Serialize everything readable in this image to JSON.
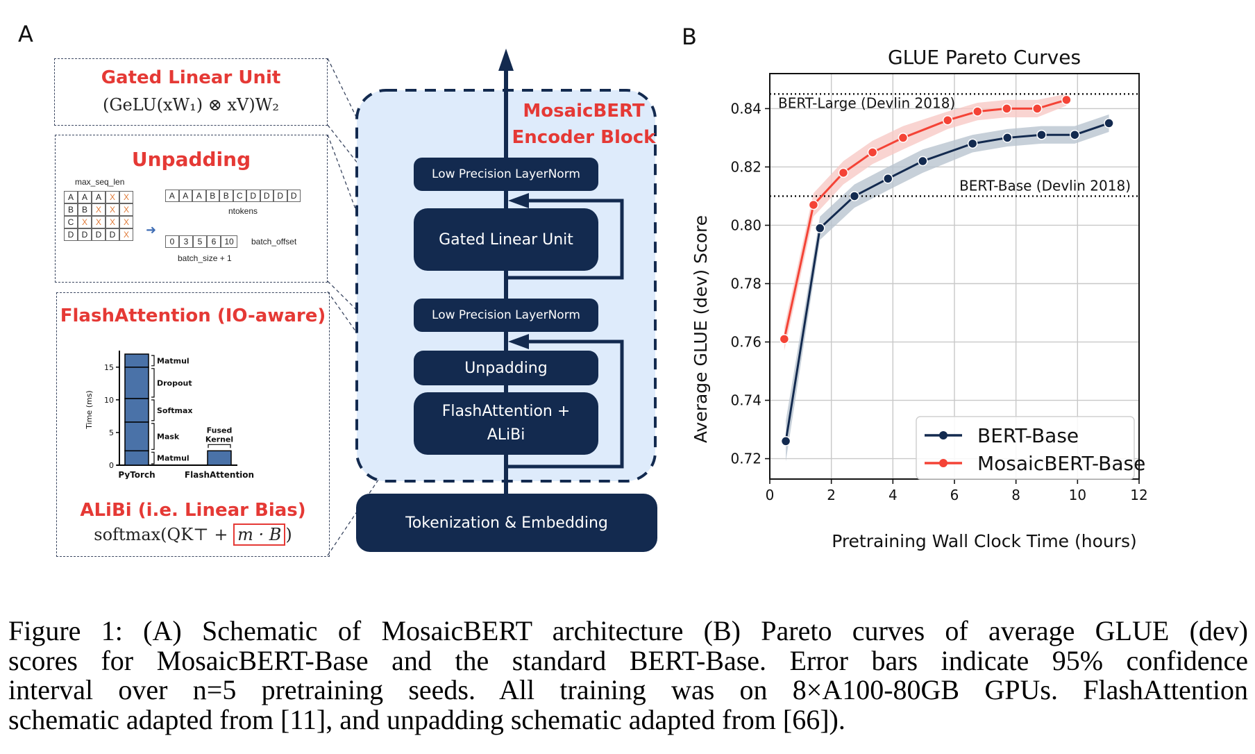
{
  "panel_a": {
    "letter": "A",
    "glu_box": {
      "title": "Gated Linear Unit",
      "formula": "(GeLU(xW₁) ⊗ xV)W₂"
    },
    "unpadding_box": {
      "title": "Unpadding",
      "grid_label": "max_seq_len",
      "grid": [
        [
          "A",
          "A",
          "A",
          "X",
          "X"
        ],
        [
          "B",
          "B",
          "X",
          "X",
          "X"
        ],
        [
          "C",
          "X",
          "X",
          "X",
          "X"
        ],
        [
          "D",
          "D",
          "D",
          "D",
          "X"
        ]
      ],
      "tokens": [
        "A",
        "A",
        "A",
        "B",
        "B",
        "C",
        "D",
        "D",
        "D",
        "D"
      ],
      "tokens_label": "ntokens",
      "offsets": [
        "0",
        "3",
        "5",
        "6",
        "10"
      ],
      "offsets_label": "batch_offset",
      "offsets_sublabel": "batch_size + 1"
    },
    "flash_box": {
      "title": "FlashAttention (IO-aware)",
      "chart": {
        "ylabel": "Time (ms)",
        "yticks": [
          "0",
          "5",
          "10",
          "15"
        ],
        "ymax": 17,
        "pytorch_segments": [
          {
            "label": "Matmul",
            "start": 0,
            "end": 2.2
          },
          {
            "label": "Mask",
            "start": 2.2,
            "end": 6.6
          },
          {
            "label": "Softmax",
            "start": 6.6,
            "end": 10.2
          },
          {
            "label": "Dropout",
            "start": 10.2,
            "end": 15.0
          },
          {
            "label": "Matmul",
            "start": 15.0,
            "end": 17.0
          }
        ],
        "flash_value": 2.2,
        "flash_label_line1": "Fused",
        "flash_label_line2": "Kernel",
        "xlabels": [
          "PyTorch",
          "FlashAttention"
        ]
      },
      "alibi_title": "ALiBi (i.e. Linear Bias)",
      "alibi_formula_prefix": "softmax(QK⊤ + ",
      "alibi_formula_boxed": "m · B",
      "alibi_formula_suffix": ")"
    },
    "encoder": {
      "title_line1": "MosaicBERT",
      "title_line2": "Encoder Block",
      "blocks": {
        "ln_top": "Low Precision LayerNorm",
        "glu": "Gated Linear Unit",
        "ln_bottom": "Low Precision LayerNorm",
        "unpadding": "Unpadding",
        "flash_line1": "FlashAttention +",
        "flash_line2": "ALiBi",
        "embedding": "Tokenization & Embedding"
      }
    }
  },
  "panel_b": {
    "letter": "B"
  },
  "chart_data": {
    "type": "line",
    "title": "GLUE Pareto Curves",
    "xlabel": "Pretraining Wall Clock Time (hours)",
    "ylabel": "Average GLUE (dev) Score",
    "xlim": [
      0,
      12
    ],
    "ylim": [
      0.713,
      0.852
    ],
    "xticks": [
      0,
      2,
      4,
      6,
      8,
      10,
      12
    ],
    "yticks": [
      0.72,
      0.74,
      0.76,
      0.78,
      0.8,
      0.82,
      0.84
    ],
    "ytick_labels": [
      "0.72",
      "0.74",
      "0.76",
      "0.78",
      "0.80",
      "0.82",
      "0.84"
    ],
    "grid": true,
    "legend_position": "lower-right",
    "reference_lines": [
      {
        "label": "BERT-Large (Devlin 2018)",
        "y": 0.845,
        "label_position": "left"
      },
      {
        "label": "BERT-Base (Devlin 2018)",
        "y": 0.81,
        "label_position": "right"
      }
    ],
    "series": [
      {
        "name": "BERT-Base",
        "color": "#132a4f",
        "band_color": "#b9c4d0",
        "x": [
          0.52,
          1.63,
          2.75,
          3.84,
          4.97,
          6.59,
          7.72,
          8.83,
          9.91,
          11.02
        ],
        "y": [
          0.726,
          0.799,
          0.81,
          0.816,
          0.822,
          0.828,
          0.83,
          0.831,
          0.831,
          0.835
        ],
        "ci": [
          0.007,
          0.004,
          0.004,
          0.004,
          0.004,
          0.003,
          0.003,
          0.003,
          0.003,
          0.003
        ]
      },
      {
        "name": "MosaicBERT-Base",
        "color": "#f44336",
        "band_color": "#f8c9c6",
        "x": [
          0.47,
          1.42,
          2.39,
          3.34,
          4.33,
          5.78,
          6.75,
          7.7,
          8.69,
          9.64
        ],
        "y": [
          0.761,
          0.807,
          0.818,
          0.825,
          0.83,
          0.836,
          0.839,
          0.84,
          0.84,
          0.843
        ],
        "ci": [
          0.004,
          0.004,
          0.004,
          0.004,
          0.004,
          0.003,
          0.003,
          0.003,
          0.003,
          0.002
        ]
      }
    ]
  },
  "caption": {
    "lines": [
      "Figure 1: (A) Schematic of MosaicBERT architecture (B) Pareto curves of average GLUE (dev)",
      "scores for MosaicBERT-Base and the standard BERT-Base.  Error bars indicate 95% confidence",
      "interval over n=5 pretraining seeds.  All training was on 8×A100-80GB GPUs.  FlashAttention",
      "schematic adapted from [11], and unpadding schematic adapted from [66])."
    ]
  }
}
